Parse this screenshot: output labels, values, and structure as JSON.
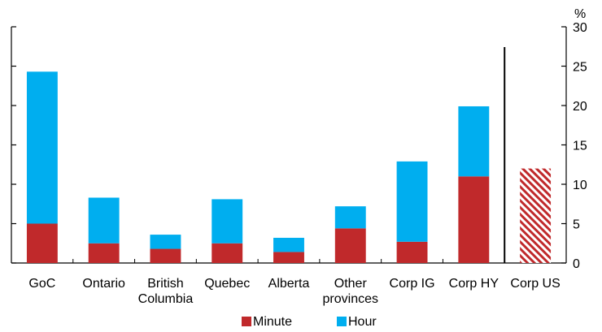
{
  "chart_data": {
    "type": "bar",
    "stacked": true,
    "categories": [
      [
        "GoC"
      ],
      [
        "Ontario"
      ],
      [
        "British",
        "Columbia"
      ],
      [
        "Quebec"
      ],
      [
        "Alberta"
      ],
      [
        "Other",
        "provinces"
      ],
      [
        "Corp IG"
      ],
      [
        "Corp HY"
      ],
      [
        "Corp US"
      ]
    ],
    "series": [
      {
        "name": "Minute",
        "color": "#c0292b",
        "values": [
          5.0,
          2.5,
          1.8,
          2.5,
          1.4,
          4.4,
          2.7,
          11.0,
          null
        ]
      },
      {
        "name": "Hour",
        "color": "#00aeef",
        "values": [
          19.3,
          5.8,
          1.8,
          5.6,
          1.8,
          2.8,
          10.2,
          8.9,
          null
        ]
      }
    ],
    "hatched": {
      "category_index": 8,
      "value": 12.0,
      "color": "#c0292b"
    },
    "divider_after_index": 7,
    "y_unit": "%",
    "ylim": [
      0,
      30
    ],
    "yticks": [
      0,
      5,
      10,
      15,
      20,
      25,
      30
    ],
    "grid": false,
    "legend_position": "bottom-center"
  }
}
